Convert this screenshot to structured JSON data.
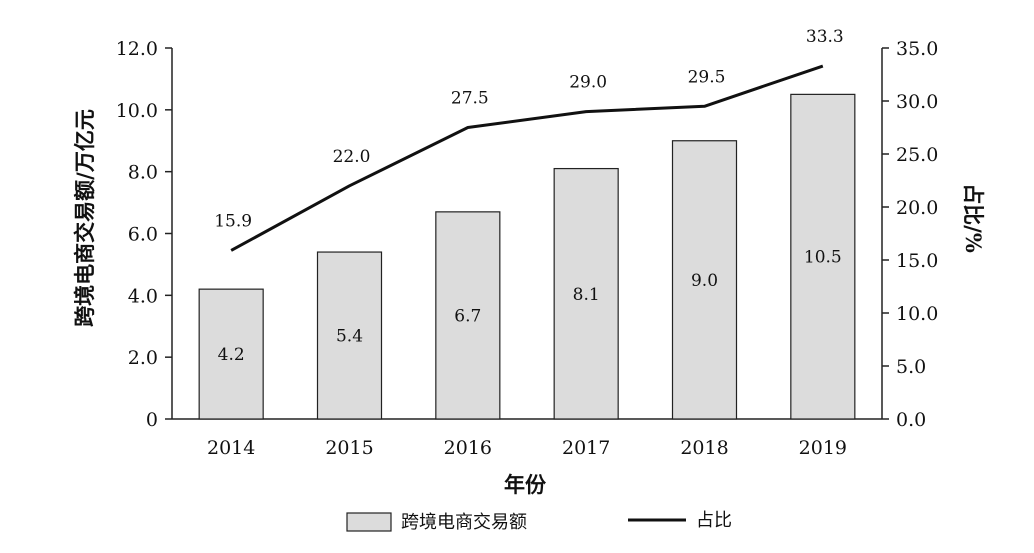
{
  "chart_data": {
    "type": "bar",
    "categories": [
      "2014",
      "2015",
      "2016",
      "2017",
      "2018",
      "2019"
    ],
    "series": [
      {
        "name": "跨境电商交易额",
        "type": "bar",
        "axis": "left",
        "values": [
          4.2,
          5.4,
          6.7,
          8.1,
          9.0,
          10.5
        ]
      },
      {
        "name": "占比",
        "type": "line",
        "axis": "right",
        "values": [
          15.9,
          22.0,
          27.5,
          29.0,
          29.5,
          33.3
        ]
      }
    ],
    "bar_labels": [
      "4.2",
      "5.4",
      "6.7",
      "8.1",
      "9.0",
      "10.5"
    ],
    "line_labels": [
      "15.9",
      "22.0",
      "27.5",
      "29.0",
      "29.5",
      "33.3"
    ],
    "xlabel": "年份",
    "ylabel": "跨境电商交易额/万亿元",
    "y2label": "占比/%",
    "ylim": [
      0,
      12
    ],
    "y2lim": [
      0,
      35
    ],
    "yticks": [
      "0",
      "2.0",
      "4.0",
      "6.0",
      "8.0",
      "10.0",
      "12.0"
    ],
    "y2ticks": [
      "0.0",
      "5.0",
      "10.0",
      "15.0",
      "20.0",
      "25.0",
      "30.0",
      "35.0"
    ],
    "grid": false,
    "legend_position": "bottom",
    "colors": {
      "bar_fill": "#dcdcdc",
      "bar_stroke": "#222222",
      "line": "#111111",
      "axis": "#222222"
    }
  }
}
